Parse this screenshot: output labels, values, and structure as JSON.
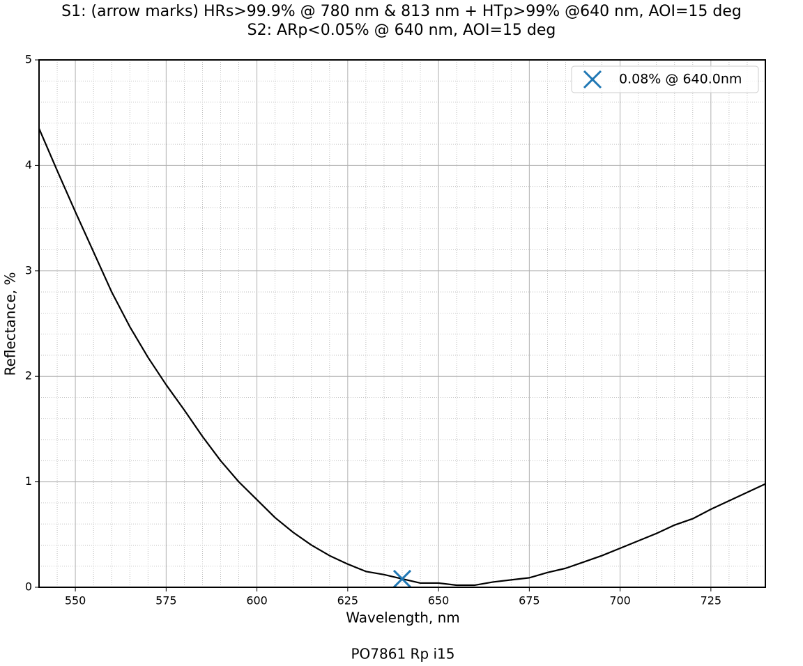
{
  "chart_data": {
    "type": "line",
    "title": "S1: (arrow marks) HRs>99.9% @ 780 nm & 813 nm + HTp>99% @640 nm, AOI=15 deg",
    "subtitle": "S2: ARp<0.05% @ 640 nm, AOI=15 deg",
    "xlabel": "Wavelength, nm",
    "ylabel": "Reflectance, %",
    "footer": "PO7861 Rp i15",
    "x": [
      540,
      545,
      550,
      555,
      560,
      565,
      570,
      575,
      580,
      585,
      590,
      595,
      600,
      605,
      610,
      615,
      620,
      625,
      630,
      635,
      640,
      645,
      650,
      655,
      660,
      665,
      670,
      675,
      680,
      685,
      690,
      695,
      700,
      705,
      710,
      715,
      720,
      725,
      730,
      735,
      740
    ],
    "series": [
      {
        "color": "#000000",
        "values": [
          4.35,
          3.95,
          3.56,
          3.18,
          2.8,
          2.47,
          2.18,
          1.92,
          1.68,
          1.43,
          1.2,
          1.0,
          0.83,
          0.66,
          0.52,
          0.4,
          0.3,
          0.22,
          0.15,
          0.12,
          0.08,
          0.04,
          0.04,
          0.02,
          0.02,
          0.05,
          0.07,
          0.09,
          0.14,
          0.18,
          0.24,
          0.3,
          0.37,
          0.44,
          0.51,
          0.59,
          0.65,
          0.74,
          0.82,
          0.9,
          0.98
        ]
      }
    ],
    "marker": {
      "name": "0.08% @ 640.0nm",
      "color": "#1f77b4",
      "x": 640,
      "y": 0.08
    },
    "xlim": [
      540,
      740
    ],
    "ylim": [
      0,
      5
    ],
    "xticks": [
      550,
      575,
      600,
      625,
      650,
      675,
      700,
      725
    ],
    "yticks": [
      0,
      1,
      2,
      3,
      4,
      5
    ],
    "xminorticks": [
      545,
      555,
      560,
      565,
      570,
      580,
      585,
      590,
      595,
      605,
      610,
      615,
      620,
      630,
      635,
      640,
      645,
      655,
      660,
      665,
      670,
      680,
      685,
      690,
      695,
      705,
      710,
      715,
      720,
      730,
      735
    ],
    "yminorticks": [
      0.2,
      0.4,
      0.6,
      0.8,
      1.2,
      1.4,
      1.6,
      1.8,
      2.2,
      2.4,
      2.6,
      2.8,
      3.2,
      3.4,
      3.6,
      3.8,
      4.2,
      4.4,
      4.6,
      4.8
    ],
    "grid": true,
    "legend": "upper right"
  }
}
